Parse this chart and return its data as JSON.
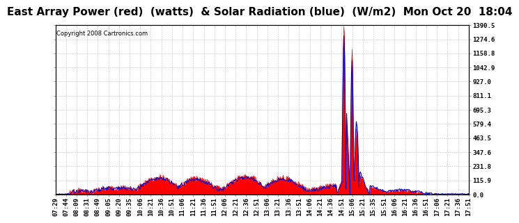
{
  "title": "East Array Power (red)  (watts)  & Solar Radiation (blue)  (W/m2)  Mon Oct 20  18:04",
  "copyright": "Copyright 2008 Cartronics.com",
  "bg_color": "#ffffff",
  "plot_bg_color": "#ffffff",
  "grid_color": "#bbbbbb",
  "y_ticks": [
    0.0,
    115.9,
    231.8,
    347.6,
    463.5,
    579.4,
    695.3,
    811.1,
    927.0,
    1042.9,
    1158.8,
    1274.6,
    1390.5
  ],
  "y_min": 0.0,
  "y_max": 1390.5,
  "x_tick_labels": [
    "07:29",
    "07:44",
    "08:09",
    "08:31",
    "08:49",
    "09:05",
    "09:20",
    "09:35",
    "10:06",
    "10:21",
    "10:36",
    "10:51",
    "11:06",
    "11:21",
    "11:36",
    "11:51",
    "12:06",
    "12:21",
    "12:36",
    "12:51",
    "13:06",
    "13:21",
    "13:36",
    "13:51",
    "14:06",
    "14:21",
    "14:36",
    "14:51",
    "15:06",
    "15:21",
    "15:35",
    "15:51",
    "16:06",
    "16:21",
    "16:36",
    "16:51",
    "17:06",
    "17:21",
    "17:36",
    "17:51"
  ],
  "red_color": "#ff0000",
  "blue_color": "#0000cc",
  "title_fontsize": 11,
  "tick_fontsize": 6.5,
  "copyright_fontsize": 6
}
